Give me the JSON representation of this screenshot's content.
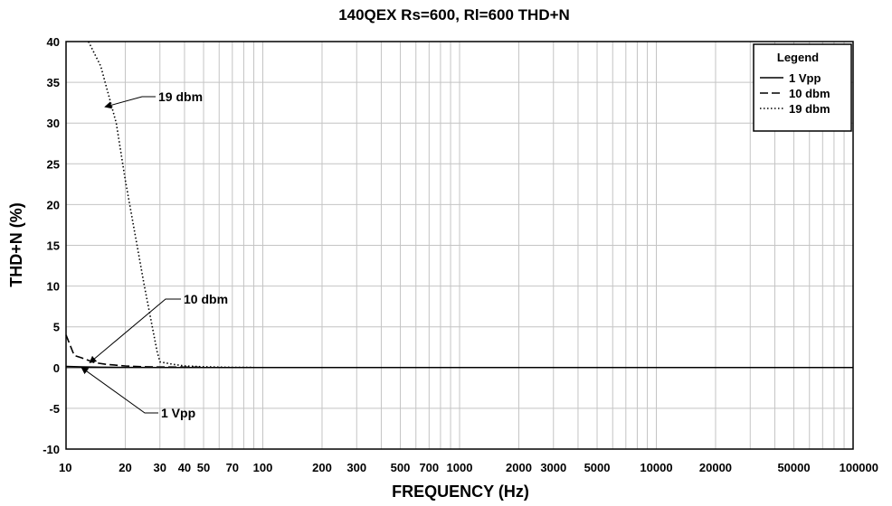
{
  "chart_data": {
    "type": "line",
    "title": "140QEX  Rs=600, Rl=600 THD+N",
    "xlabel": "FREQUENCY (Hz)",
    "ylabel": "THD+N (%)",
    "x_scale": "log",
    "xlim": [
      10,
      100000
    ],
    "ylim": [
      -10,
      40
    ],
    "grid": true,
    "legend_position": "top-right",
    "legend_title": "Legend",
    "x_ticks": [
      10,
      20,
      30,
      40,
      50,
      70,
      100,
      200,
      300,
      500,
      700,
      1000,
      2000,
      3000,
      5000,
      10000,
      20000,
      50000,
      100000
    ],
    "x_tick_labels": [
      "10",
      "20",
      "30",
      "40",
      "50",
      "70",
      "100",
      "200",
      "300",
      "500",
      "700",
      "1000",
      "2000",
      "3000",
      "5000",
      "10000",
      "20000",
      "50000",
      "100000"
    ],
    "y_ticks": [
      -10,
      -5,
      0,
      5,
      10,
      15,
      20,
      25,
      30,
      35,
      40
    ],
    "y_tick_labels": [
      "-10",
      "-5",
      "0",
      "5",
      "10",
      "15",
      "20",
      "25",
      "30",
      "35",
      "40"
    ],
    "series": [
      {
        "name": "1 Vpp",
        "style": "solid",
        "x": [
          10,
          12,
          15,
          20,
          30,
          50,
          100,
          1000,
          10000,
          100000
        ],
        "y": [
          0.15,
          0.1,
          0.05,
          0.03,
          0.02,
          0.01,
          0.01,
          0.01,
          0.01,
          0.01
        ]
      },
      {
        "name": "10 dbm",
        "style": "dashed",
        "x": [
          10,
          11,
          12,
          14,
          16,
          20,
          25,
          30,
          40,
          50
        ],
        "y": [
          4.0,
          1.5,
          1.2,
          0.6,
          0.4,
          0.2,
          0.1,
          0.07,
          0.05,
          0.04
        ]
      },
      {
        "name": "19 dbm",
        "style": "dotted",
        "x": [
          13,
          15,
          18,
          20,
          25,
          29,
          30,
          35,
          40,
          50,
          60,
          70,
          90
        ],
        "y": [
          40,
          37,
          30,
          23,
          10,
          2,
          0.7,
          0.4,
          0.2,
          0.1,
          0.05,
          0.03,
          0.02
        ]
      }
    ],
    "annotations": [
      {
        "text": "19 dbm",
        "series": "19 dbm",
        "x": 15.8,
        "y": 32
      },
      {
        "text": "10 dbm",
        "series": "10 dbm",
        "x": 13.2,
        "y": 0.6
      },
      {
        "text": "1 Vpp",
        "series": "1 Vpp",
        "x": 12,
        "y": 0
      }
    ]
  }
}
